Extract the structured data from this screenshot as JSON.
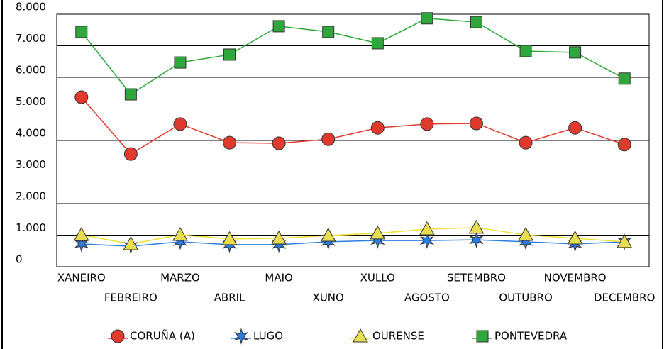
{
  "chart_data": {
    "type": "line",
    "categories": [
      "XANEIRO",
      "FEBREIRO",
      "MARZO",
      "ABRIL",
      "MAIO",
      "XUÑO",
      "XULLO",
      "AGOSTO",
      "SETEMBRO",
      "OUTUBRO",
      "NOVEMBRO",
      "DECEMBRO"
    ],
    "series": [
      {
        "name": "CORUÑA (A)",
        "color": "#e03a2f",
        "values": [
          5370,
          3570,
          4520,
          3930,
          3910,
          4040,
          4400,
          4520,
          4540,
          3930,
          4400,
          3870
        ]
      },
      {
        "name": "LUGO",
        "color": "#2b7de0",
        "values": [
          720,
          650,
          790,
          700,
          700,
          790,
          830,
          830,
          850,
          790,
          720,
          790
        ]
      },
      {
        "name": "OURENSE",
        "color": "#f0e030",
        "values": [
          1010,
          720,
          1010,
          880,
          900,
          990,
          1060,
          1190,
          1240,
          1010,
          900,
          790
        ]
      },
      {
        "name": "PONTEVEDRA",
        "color": "#2ea83a",
        "values": [
          7440,
          5460,
          6470,
          6720,
          7620,
          7440,
          7080,
          7870,
          7750,
          6830,
          6790,
          5960
        ]
      }
    ],
    "ylim": [
      0,
      8000
    ],
    "yticks": [
      0,
      {
        "value": 1000,
        "label": "1.000"
      },
      {
        "value": 2000,
        "label": "2.000"
      },
      {
        "value": 3000,
        "label": "3.000"
      },
      {
        "value": 4000,
        "label": "4.000"
      },
      {
        "value": 5000,
        "label": "5.000"
      },
      {
        "value": 6000,
        "label": "6.000"
      },
      {
        "value": 7000,
        "label": "7.000"
      },
      {
        "value": 8000,
        "label": "8.000"
      }
    ],
    "grid": true
  }
}
